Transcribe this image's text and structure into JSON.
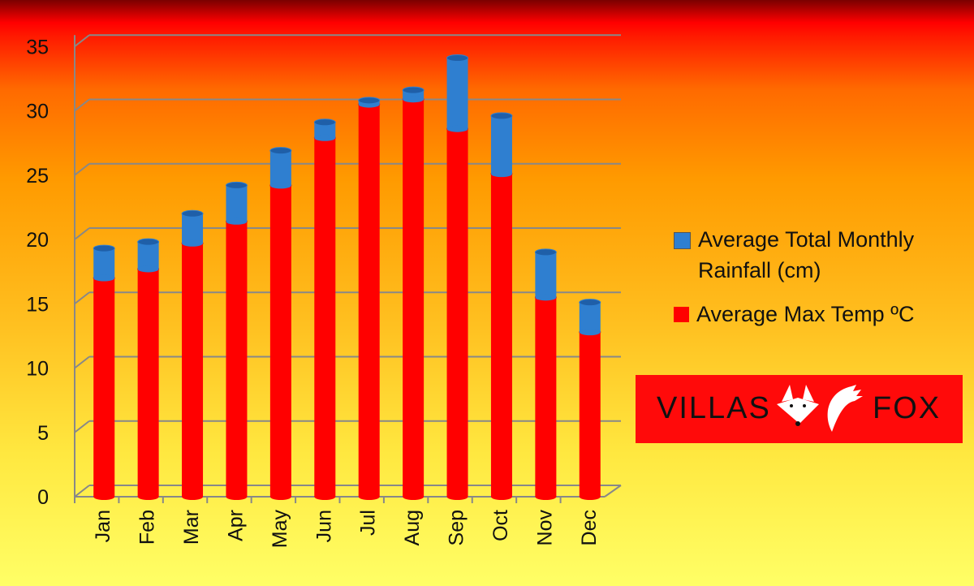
{
  "chart_data": {
    "type": "bar",
    "stacked": true,
    "style": "3d-cylinder",
    "categories": [
      "Jan",
      "Feb",
      "Mar",
      "Apr",
      "May",
      "Jun",
      "Jul",
      "Aug",
      "Sep",
      "Oct",
      "Nov",
      "Dec"
    ],
    "series": [
      {
        "name": "Average Max Temp ºC",
        "color": "#ff0000",
        "values": [
          17.0,
          17.7,
          19.7,
          21.4,
          24.2,
          27.9,
          30.5,
          30.9,
          28.6,
          25.1,
          15.5,
          12.8
        ]
      },
      {
        "name": "Average Total Monthly Rainfall (cm)",
        "color": "#2f7fd0",
        "values": [
          2.3,
          2.1,
          2.3,
          2.8,
          2.7,
          1.2,
          0.3,
          0.7,
          5.5,
          4.5,
          3.5,
          2.3
        ]
      }
    ],
    "yticks": [
      "0",
      "5",
      "10",
      "15",
      "20",
      "25",
      "30",
      "35"
    ],
    "ylim": [
      0,
      35
    ],
    "grid": true,
    "legend_position": "right"
  },
  "legend": {
    "rain": "Average Total Monthly Rainfall (cm)",
    "temp": "Average Max Temp ºC"
  },
  "logo": {
    "left": "VILLAS",
    "right": "FOX"
  }
}
